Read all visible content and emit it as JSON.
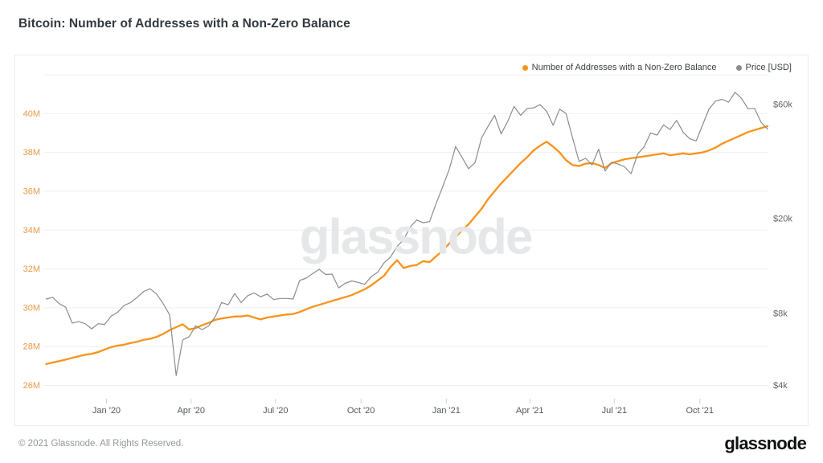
{
  "page": {
    "title": "Bitcoin: Number of Addresses with a Non-Zero Balance",
    "copyright": "© 2021 Glassnode. All Rights Reserved.",
    "brand_logo": "glassnode",
    "watermark": "glassnode"
  },
  "chart_data": {
    "type": "line",
    "title": "Bitcoin: Number of Addresses with a Non-Zero Balance",
    "legend_position": "top-right",
    "grid": true,
    "x_domain": [
      "2019-10-25",
      "2021-12-13"
    ],
    "x_start": "2019-10-28",
    "x_step_days": 7,
    "x_ticks": [
      {
        "date": "2020-01-01",
        "label": "Jan '20"
      },
      {
        "date": "2020-04-01",
        "label": "Apr '20"
      },
      {
        "date": "2020-07-01",
        "label": "Jul '20"
      },
      {
        "date": "2020-10-01",
        "label": "Oct '20"
      },
      {
        "date": "2021-01-01",
        "label": "Jan '21"
      },
      {
        "date": "2021-04-01",
        "label": "Apr '21"
      },
      {
        "date": "2021-07-01",
        "label": "Jul '21"
      },
      {
        "date": "2021-10-01",
        "label": "Oct '21"
      }
    ],
    "left_axis": {
      "scale": "linear",
      "unit": "addresses (millions)",
      "label_color": "#e79a45",
      "top_value": 42,
      "bottom_value": 26,
      "grid_values": [
        42,
        40,
        38,
        36,
        34,
        32,
        30,
        28,
        26
      ],
      "ticks": [
        {
          "value": 40,
          "label": "40M"
        },
        {
          "value": 38,
          "label": "38M"
        },
        {
          "value": 36,
          "label": "36M"
        },
        {
          "value": 34,
          "label": "34M"
        },
        {
          "value": 32,
          "label": "32M"
        },
        {
          "value": 30,
          "label": "30M"
        },
        {
          "value": 28,
          "label": "28M"
        },
        {
          "value": 26,
          "label": "26M"
        }
      ]
    },
    "right_axis": {
      "scale": "log",
      "unit": "USD",
      "label_color": "#5f646a",
      "top_value": 60000,
      "bottom_value": 4000,
      "ticks": [
        {
          "value": 60000,
          "label": "$60k"
        },
        {
          "value": 20000,
          "label": "$20k"
        },
        {
          "value": 8000,
          "label": "$8k"
        },
        {
          "value": 4000,
          "label": "$4k"
        }
      ]
    },
    "series": [
      {
        "key": "addresses",
        "name": "Number of Addresses with a Non-Zero Balance",
        "axis": "left",
        "color": "#f7931a",
        "width": 2.3,
        "unit": "M",
        "values": [
          27.1,
          27.18,
          27.25,
          27.33,
          27.42,
          27.5,
          27.58,
          27.63,
          27.72,
          27.85,
          27.97,
          28.05,
          28.1,
          28.18,
          28.25,
          28.35,
          28.4,
          28.5,
          28.65,
          28.85,
          29.0,
          29.15,
          28.88,
          28.95,
          29.1,
          29.22,
          29.38,
          29.45,
          29.5,
          29.55,
          29.55,
          29.6,
          29.5,
          29.4,
          29.5,
          29.55,
          29.6,
          29.65,
          29.68,
          29.78,
          29.92,
          30.05,
          30.15,
          30.25,
          30.35,
          30.45,
          30.55,
          30.65,
          30.8,
          30.95,
          31.15,
          31.4,
          31.65,
          32.1,
          32.45,
          32.05,
          32.15,
          32.2,
          32.4,
          32.35,
          32.65,
          32.95,
          33.3,
          33.65,
          34.0,
          34.3,
          34.7,
          35.1,
          35.6,
          36.0,
          36.4,
          36.75,
          37.1,
          37.45,
          37.75,
          38.1,
          38.35,
          38.55,
          38.3,
          38.0,
          37.6,
          37.35,
          37.3,
          37.42,
          37.45,
          37.35,
          37.2,
          37.45,
          37.55,
          37.65,
          37.7,
          37.75,
          37.8,
          37.85,
          37.9,
          37.95,
          37.85,
          37.9,
          37.95,
          37.9,
          37.95,
          38.0,
          38.1,
          38.25,
          38.45,
          38.6,
          38.75,
          38.9,
          39.05,
          39.15,
          39.25,
          39.35
        ]
      },
      {
        "key": "price",
        "name": "Price [USD]",
        "axis": "right",
        "color": "#8c8c8c",
        "width": 1.2,
        "unit": "USD",
        "values": [
          9200,
          9350,
          8800,
          8500,
          7300,
          7400,
          7250,
          6900,
          7250,
          7200,
          7800,
          8100,
          8650,
          8900,
          9350,
          9900,
          10150,
          9650,
          8800,
          7900,
          4400,
          6200,
          6400,
          7100,
          6850,
          7100,
          7750,
          8900,
          8700,
          9700,
          8900,
          9500,
          9750,
          9400,
          9650,
          9150,
          9250,
          9250,
          9200,
          11000,
          11250,
          11750,
          12250,
          11650,
          11700,
          10250,
          10700,
          10950,
          10800,
          10600,
          11400,
          11900,
          13050,
          13800,
          15300,
          16300,
          18400,
          19700,
          19200,
          19400,
          23100,
          27100,
          32000,
          40000,
          36000,
          32300,
          34300,
          43500,
          48600,
          54100,
          45200,
          50900,
          58900,
          54100,
          57700,
          58100,
          59900,
          56200,
          49100,
          57400,
          55000,
          43500,
          34700,
          35700,
          33500,
          39000,
          31600,
          34400,
          33800,
          32900,
          30800,
          37200,
          39900,
          45600,
          44700,
          49300,
          47100,
          51500,
          46000,
          43200,
          42200,
          49200,
          57500,
          62000,
          63100,
          61300,
          67500,
          63600,
          57600,
          57800,
          50600,
          47300
        ]
      }
    ],
    "colors": {
      "grid": "#efefef",
      "tick_mark": "#cfd2d5",
      "x_label": "#53575c",
      "watermark": "#e6e7e9"
    }
  }
}
